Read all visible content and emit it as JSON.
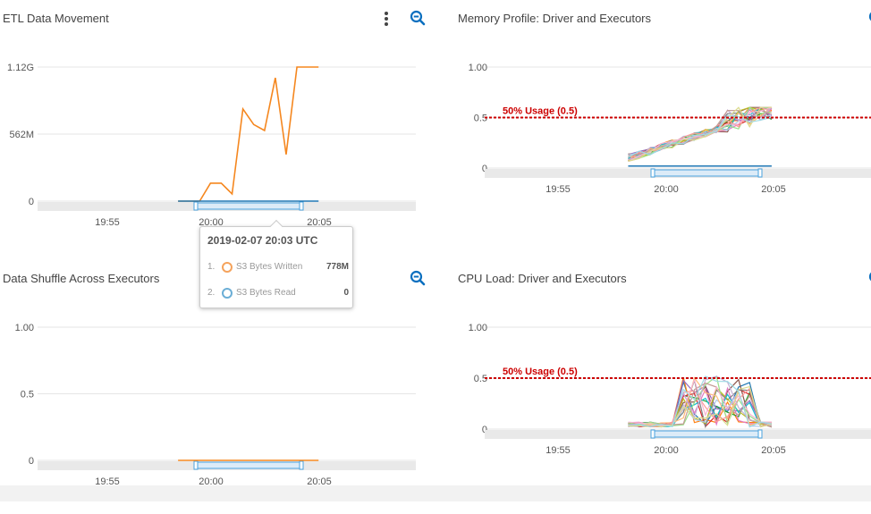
{
  "chart_data": [
    {
      "type": "line",
      "title": "ETL Data Movement",
      "x_ticks": [
        "19:55",
        "20:00",
        "20:05"
      ],
      "y_ticks": [
        "0",
        "562M",
        "1.12G"
      ],
      "ylim": [
        0,
        1.12
      ],
      "series": [
        {
          "name": "S3 Bytes Written",
          "color": "#f5871f",
          "x": [
            13,
            14,
            15,
            16,
            17,
            18,
            19,
            20,
            21,
            22,
            23,
            24,
            25,
            26
          ],
          "y": [
            0,
            0,
            0,
            0.15,
            0.15,
            0.06,
            0.77,
            0.64,
            0.59,
            1.03,
            0.39,
            1.12,
            1.12,
            1.12
          ]
        },
        {
          "name": "S3 Bytes Read",
          "color": "#1f77b4",
          "x": [
            13,
            26
          ],
          "y": [
            0,
            0
          ]
        }
      ],
      "navigator_range": [
        "20:00",
        "20:04"
      ],
      "tooltip": {
        "title": "2019-02-07 20:03 UTC",
        "items": [
          {
            "index": "1.",
            "label": "S3 Bytes Written",
            "value": "778M",
            "color": "#f5a35c"
          },
          {
            "index": "2.",
            "label": "S3 Bytes Read",
            "value": "0",
            "color": "#6baed6"
          }
        ]
      }
    },
    {
      "type": "line",
      "title": "Memory Profile: Driver and Executors",
      "x_ticks": [
        "19:55",
        "20:00",
        "20:05"
      ],
      "y_ticks": [
        "0",
        "0.5",
        "1.00"
      ],
      "ylim": [
        0,
        1
      ],
      "threshold": {
        "label": "50% Usage (0.5)",
        "value": 0.5,
        "color": "#cc0000"
      }
    },
    {
      "type": "line",
      "title": "Data Shuffle Across Executors",
      "x_ticks": [
        "19:55",
        "20:00",
        "20:05"
      ],
      "y_ticks": [
        "0",
        "0.5",
        "1.00"
      ],
      "ylim": [
        0,
        1
      ],
      "series": [
        {
          "color": "#f5871f",
          "x": [
            13,
            26
          ],
          "y": [
            0,
            0
          ]
        }
      ]
    },
    {
      "type": "line",
      "title": "CPU Load: Driver and Executors",
      "x_ticks": [
        "19:55",
        "20:00",
        "20:05"
      ],
      "y_ticks": [
        "0",
        "0.5",
        "1.00"
      ],
      "ylim": [
        0,
        1
      ],
      "threshold": {
        "label": "50% Usage (0.5)",
        "value": 0.5,
        "color": "#cc0000"
      }
    }
  ],
  "colors": {
    "accent": "#0b6fbf",
    "grid": "#e6e6e6",
    "navigator": "#4aa3df"
  },
  "icons": {
    "menu": "vertical-ellipsis-icon",
    "zoom": "zoom-out-icon"
  },
  "multi_palette": [
    "#1f77b4",
    "#ff7f0e",
    "#2ca02c",
    "#d62728",
    "#9467bd",
    "#8c564b",
    "#e377c2",
    "#7f7f7f",
    "#bcbd22",
    "#17becf",
    "#aec7e8",
    "#ffbb78",
    "#98df8a",
    "#ff9896",
    "#c5b0d5",
    "#c49c94",
    "#f7b6d2",
    "#dbdb8d",
    "#9edae5"
  ]
}
